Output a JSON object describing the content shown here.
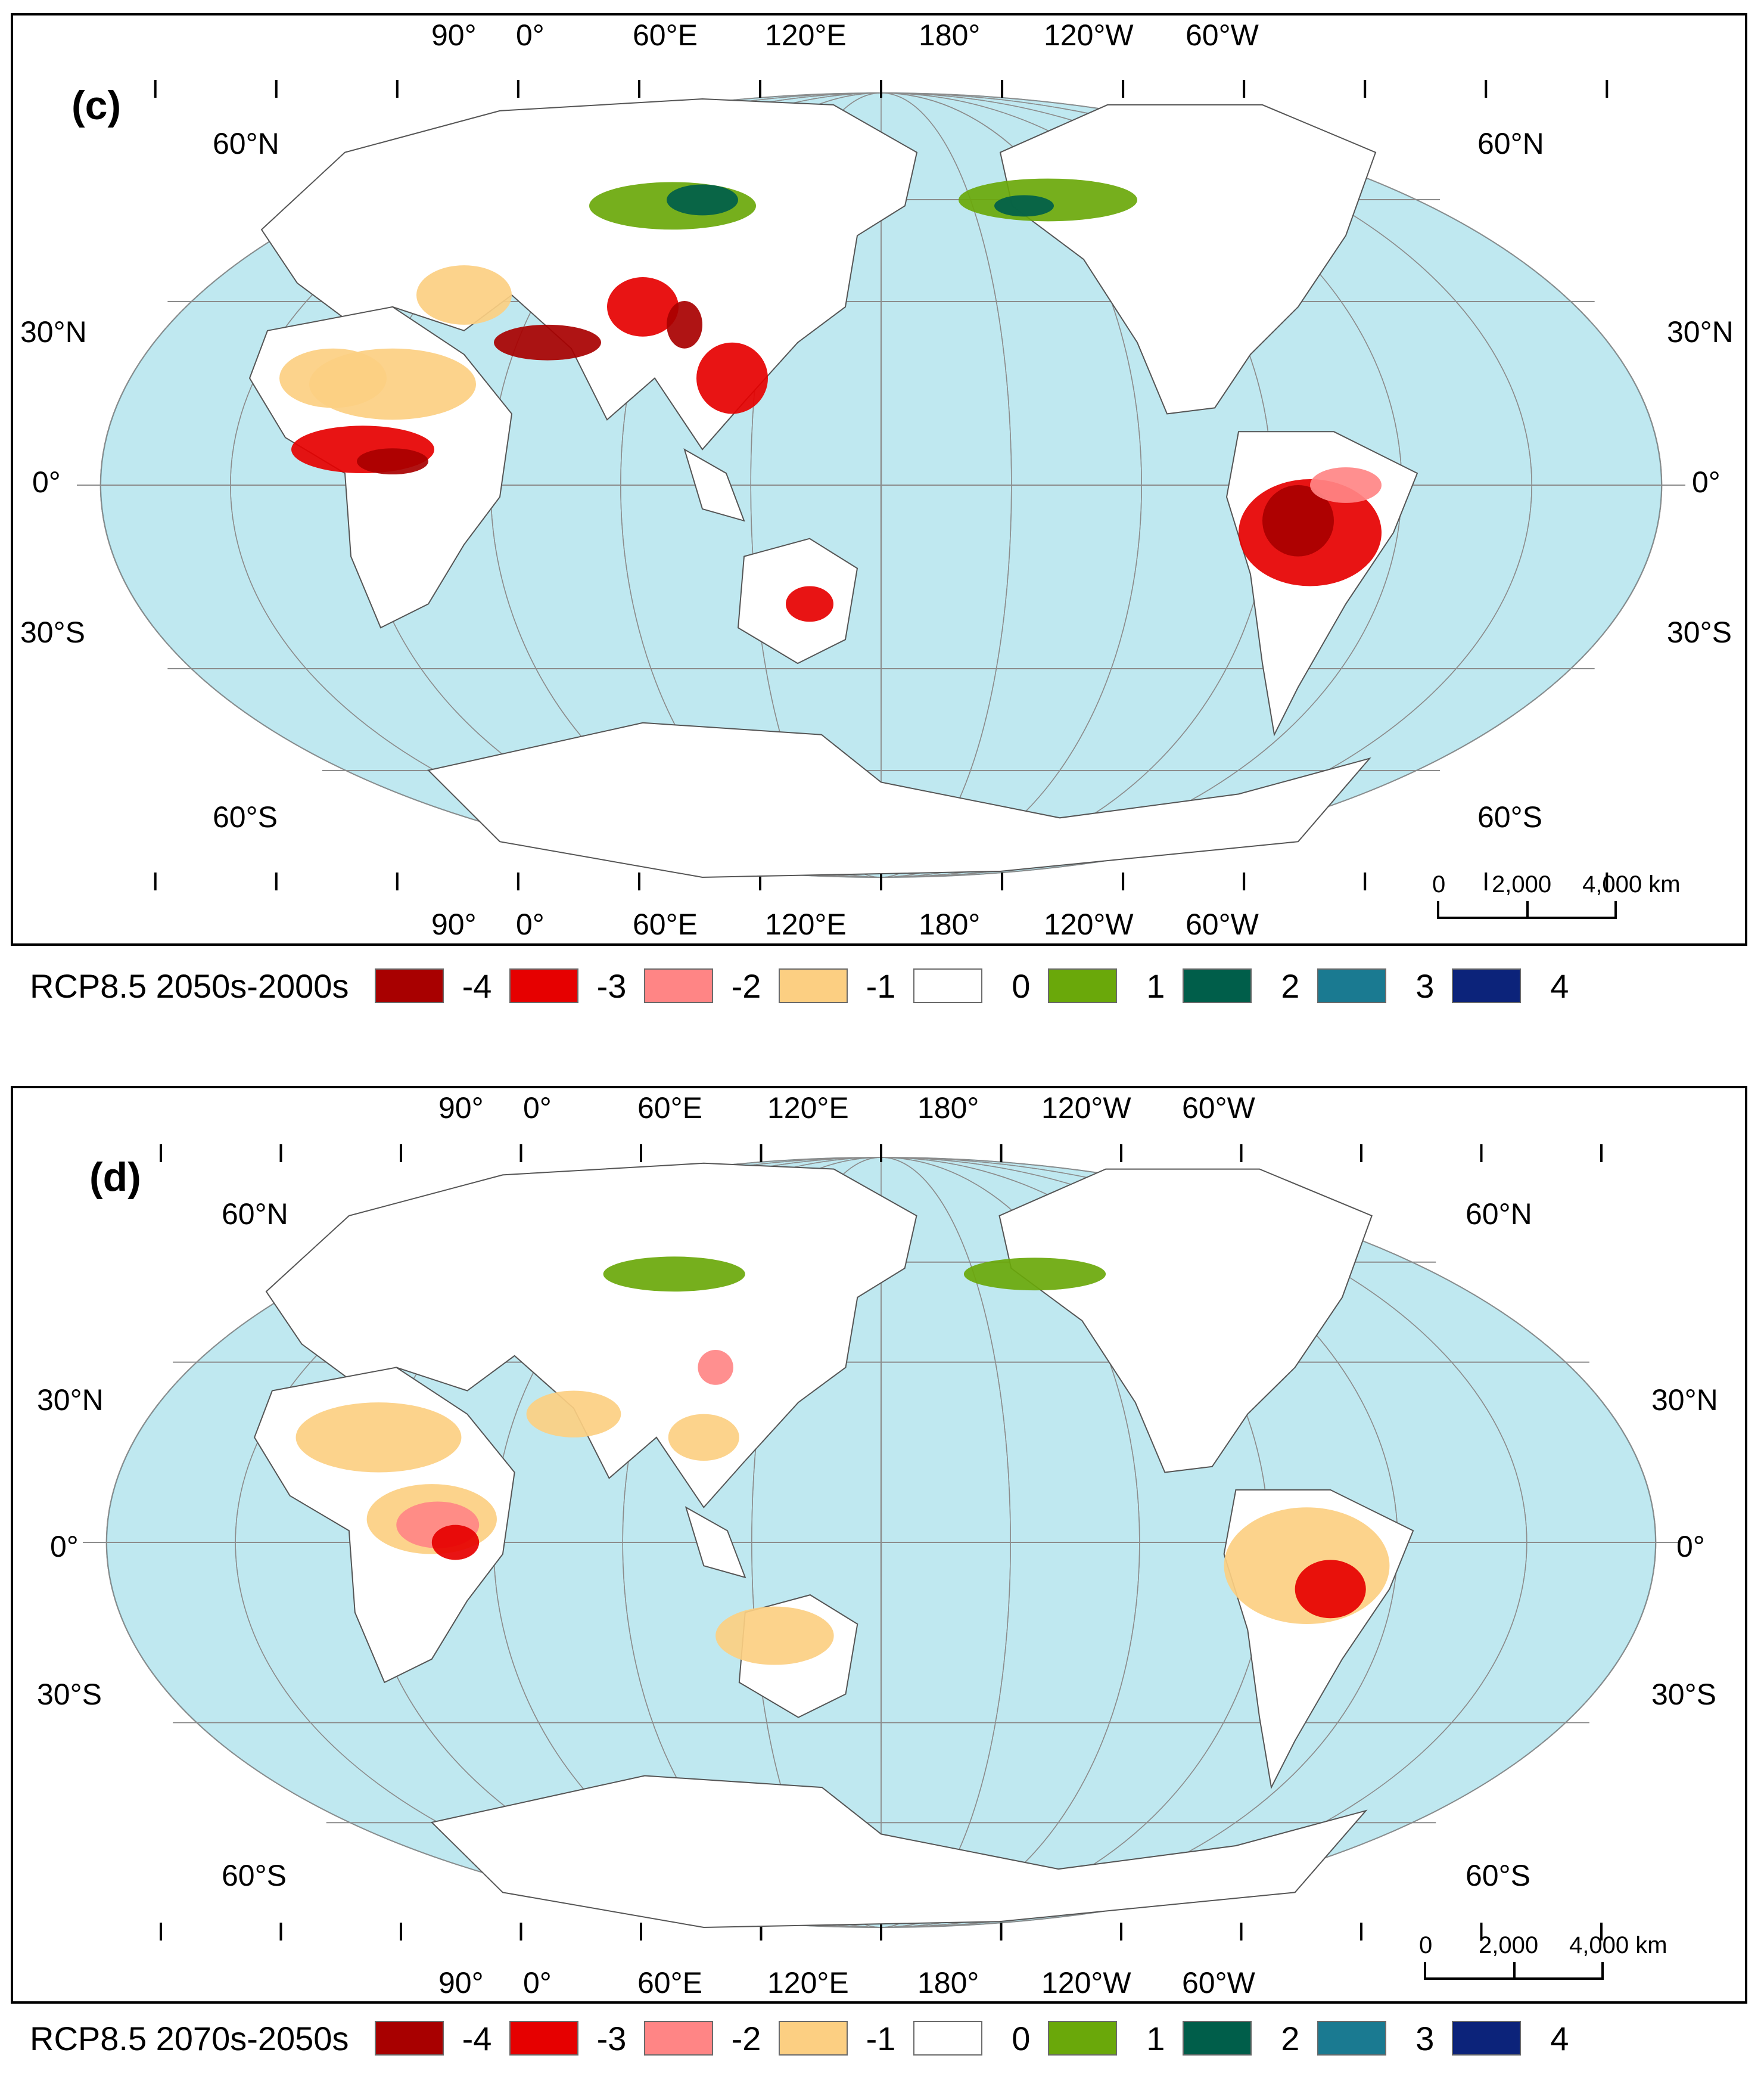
{
  "panels": [
    {
      "id": "c",
      "letter": "(c)",
      "lon_top": [
        "90°",
        "0°",
        "60°E",
        "120°E",
        "180°",
        "120°W",
        "60°W"
      ],
      "lon_bottom": [
        "90°",
        "0°",
        "60°E",
        "120°E",
        "180°",
        "120°W",
        "60°W"
      ],
      "lat_left": [
        "60°N",
        "30°N",
        "0°",
        "30°S",
        "60°S"
      ],
      "lat_right": [
        "60°N",
        "30°N",
        "0°",
        "30°S",
        "60°S"
      ],
      "scale_labels": [
        "0",
        "2,000",
        "4,000 km"
      ],
      "legend_title": "RCP8.5 2050s-2000s"
    },
    {
      "id": "d",
      "letter": "(d)",
      "lon_top": [
        "90°",
        "0°",
        "60°E",
        "120°E",
        "180°",
        "120°W",
        "60°W"
      ],
      "lon_bottom": [
        "90°",
        "0°",
        "60°E",
        "120°E",
        "180°",
        "120°W",
        "60°W"
      ],
      "lat_left": [
        "60°N",
        "30°N",
        "0°",
        "30°S",
        "60°S"
      ],
      "lat_right": [
        "60°N",
        "30°N",
        "0°",
        "30°S",
        "60°S"
      ],
      "scale_labels": [
        "0",
        "2,000",
        "4,000 km"
      ],
      "legend_title": "RCP8.5 2070s-2050s"
    }
  ],
  "legend_classes": [
    {
      "value": "-4",
      "color": "#a80000"
    },
    {
      "value": "-3",
      "color": "#e60000"
    },
    {
      "value": "-2",
      "color": "#ff8585"
    },
    {
      "value": "-1",
      "color": "#fccf82"
    },
    {
      "value": "0",
      "color": "#ffffff"
    },
    {
      "value": "1",
      "color": "#6aa80a"
    },
    {
      "value": "2",
      "color": "#005e4a"
    },
    {
      "value": "3",
      "color": "#1a7a91"
    },
    {
      "value": "4",
      "color": "#0c237a"
    }
  ],
  "colors": {
    "ocean": "#bfe8f0",
    "land": "#ffffff",
    "graticule": "#8c8c8c",
    "coast": "#555555"
  }
}
